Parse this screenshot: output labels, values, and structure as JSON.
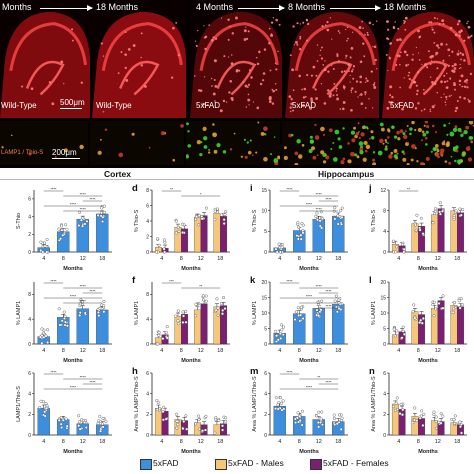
{
  "figure": {
    "time_labels_left": [
      "Months",
      "18 Months"
    ],
    "time_labels_right": [
      "4 Months",
      "8 Months",
      "18 Months"
    ],
    "panel_labels": [
      "Wild-Type",
      "Wild-Type",
      "5xFAD",
      "5xFAD",
      "5xFAD"
    ],
    "scalebar_top": "500μm",
    "scalebar_bottom": "200μm",
    "stain_label": "LAMP1 / Thio-S",
    "colors": {
      "fad": "#3e8ede",
      "males": "#f6c779",
      "females": "#7a1f72",
      "tissue_red": "#e0141a",
      "thio_green": "#39d62c"
    }
  },
  "regions": {
    "cortex": "Cortex",
    "hippocampus": "Hippocampus"
  },
  "legend": [
    {
      "label": "5xFAD",
      "color": "#3e8ede"
    },
    {
      "label": "5xFAD - Males",
      "color": "#f6c779"
    },
    {
      "label": "5xFAD - Females",
      "color": "#7a1f72"
    }
  ],
  "chart_data": [
    {
      "id": "c",
      "label": "",
      "type": "bar",
      "ylabel": "S-Thio",
      "xlabel": "Months",
      "categories": [
        "4",
        "8",
        "12",
        "18"
      ],
      "ylim": [
        0,
        7
      ],
      "sex_split": false,
      "series": [
        {
          "name": "5xFAD",
          "values": [
            0.5,
            2.3,
            3.7,
            4.3
          ]
        }
      ],
      "significance": [
        "****",
        "****",
        "****",
        "****",
        "****"
      ]
    },
    {
      "id": "d",
      "label": "d",
      "type": "bar",
      "ylabel": "% Thio-S",
      "xlabel": "Months",
      "categories": [
        "4",
        "8",
        "12",
        "18"
      ],
      "ylim": [
        0,
        8
      ],
      "sex_split": true,
      "series": [
        {
          "name": "5xFAD - Males",
          "values": [
            0.6,
            3.2,
            4.5,
            5.0
          ]
        },
        {
          "name": "5xFAD - Females",
          "values": [
            0.5,
            3.0,
            4.7,
            4.6
          ]
        }
      ],
      "significance": [
        "**",
        "*"
      ]
    },
    {
      "id": "i",
      "label": "i",
      "type": "bar",
      "ylabel": "% Thio-S",
      "xlabel": "Months",
      "categories": [
        "4",
        "8",
        "12",
        "18"
      ],
      "ylim": [
        0,
        15
      ],
      "sex_split": false,
      "series": [
        {
          "name": "5xFAD",
          "values": [
            1.0,
            5.2,
            7.9,
            8.7
          ]
        }
      ],
      "significance": [
        "****",
        "****",
        "****",
        "****",
        "****"
      ]
    },
    {
      "id": "j",
      "label": "j",
      "type": "bar",
      "ylabel": "% Thio-S",
      "xlabel": "Months",
      "categories": [
        "4",
        "8",
        "12",
        "18"
      ],
      "ylim": [
        0,
        12
      ],
      "sex_split": true,
      "series": [
        {
          "name": "5xFAD - Males",
          "values": [
            1.5,
            5.5,
            7.2,
            8.0
          ]
        },
        {
          "name": "5xFAD - Females",
          "values": [
            1.2,
            5.0,
            8.4,
            7.6
          ]
        }
      ],
      "significance": [
        "**"
      ]
    },
    {
      "id": "e",
      "label": "",
      "type": "bar",
      "ylabel": "% LAMP1",
      "xlabel": "Months",
      "categories": [
        "4",
        "8",
        "12",
        "18"
      ],
      "ylim": [
        0,
        10
      ],
      "sex_split": false,
      "series": [
        {
          "name": "5xFAD",
          "values": [
            1.2,
            4.3,
            5.7,
            5.5
          ]
        }
      ],
      "significance": [
        "****",
        "****",
        "****",
        "****",
        "****"
      ]
    },
    {
      "id": "f",
      "label": "f",
      "type": "bar",
      "ylabel": "% LAMP1",
      "xlabel": "Months",
      "categories": [
        "4",
        "8",
        "12",
        "18"
      ],
      "ylim": [
        0,
        10
      ],
      "sex_split": true,
      "series": [
        {
          "name": "5xFAD - Males",
          "values": [
            1.0,
            4.5,
            5.5,
            6.0
          ]
        },
        {
          "name": "5xFAD - Females",
          "values": [
            1.5,
            4.8,
            6.5,
            6.2
          ]
        }
      ],
      "significance": [
        "***",
        "**"
      ]
    },
    {
      "id": "k",
      "label": "k",
      "type": "bar",
      "ylabel": "% LAMP1",
      "xlabel": "Months",
      "categories": [
        "4",
        "8",
        "12",
        "18"
      ],
      "ylim": [
        0,
        20
      ],
      "sex_split": false,
      "series": [
        {
          "name": "5xFAD",
          "values": [
            3.5,
            9.8,
            11.5,
            12.8
          ]
        }
      ],
      "significance": [
        "****",
        "****",
        "****",
        "****",
        "*",
        "****"
      ]
    },
    {
      "id": "l",
      "label": "l",
      "type": "bar",
      "ylabel": "% LAMP1",
      "xlabel": "Months",
      "categories": [
        "4",
        "8",
        "12",
        "18"
      ],
      "ylim": [
        0,
        20
      ],
      "sex_split": true,
      "series": [
        {
          "name": "5xFAD - Males",
          "values": [
            3.0,
            10.5,
            11.5,
            12.5
          ]
        },
        {
          "name": "5xFAD - Females",
          "values": [
            4.0,
            9.5,
            14.0,
            12.0
          ]
        }
      ],
      "significance": []
    },
    {
      "id": "g",
      "label": "",
      "type": "bar",
      "ylabel": "LAMP1/Thio-S",
      "xlabel": "Months",
      "categories": [
        "4",
        "8",
        "12",
        "18"
      ],
      "ylim": [
        0,
        6
      ],
      "sex_split": false,
      "series": [
        {
          "name": "5xFAD",
          "values": [
            2.6,
            1.5,
            1.1,
            1.0
          ]
        }
      ],
      "significance": [
        "****",
        "****",
        "****",
        "****"
      ]
    },
    {
      "id": "h",
      "label": "h",
      "type": "bar",
      "ylabel": "Area % LAMP1/Thio-S",
      "xlabel": "Months",
      "categories": [
        "4",
        "8",
        "12",
        "18"
      ],
      "ylim": [
        0,
        6
      ],
      "sex_split": true,
      "series": [
        {
          "name": "5xFAD - Males",
          "values": [
            2.6,
            1.5,
            1.2,
            1.0
          ]
        },
        {
          "name": "5xFAD - Females",
          "values": [
            2.3,
            1.4,
            1.0,
            1.1
          ]
        }
      ],
      "significance": []
    },
    {
      "id": "m",
      "label": "m",
      "type": "bar",
      "ylabel": "Area % LAMP1/Thio-S",
      "xlabel": "Months",
      "categories": [
        "4",
        "8",
        "12",
        "18"
      ],
      "ylim": [
        0,
        6
      ],
      "sex_split": false,
      "series": [
        {
          "name": "5xFAD",
          "values": [
            2.8,
            1.8,
            1.5,
            1.3
          ]
        }
      ],
      "significance": [
        "****",
        "**",
        "****",
        "****"
      ]
    },
    {
      "id": "n",
      "label": "n",
      "type": "bar",
      "ylabel": "Area % LAMP1/Thio-S",
      "xlabel": "Months",
      "categories": [
        "4",
        "8",
        "12",
        "18"
      ],
      "ylim": [
        0,
        6
      ],
      "sex_split": true,
      "series": [
        {
          "name": "5xFAD - Males",
          "values": [
            3.0,
            1.8,
            1.4,
            1.2
          ]
        },
        {
          "name": "5xFAD - Females",
          "values": [
            2.5,
            1.6,
            1.3,
            1.0
          ]
        }
      ],
      "significance": []
    }
  ]
}
